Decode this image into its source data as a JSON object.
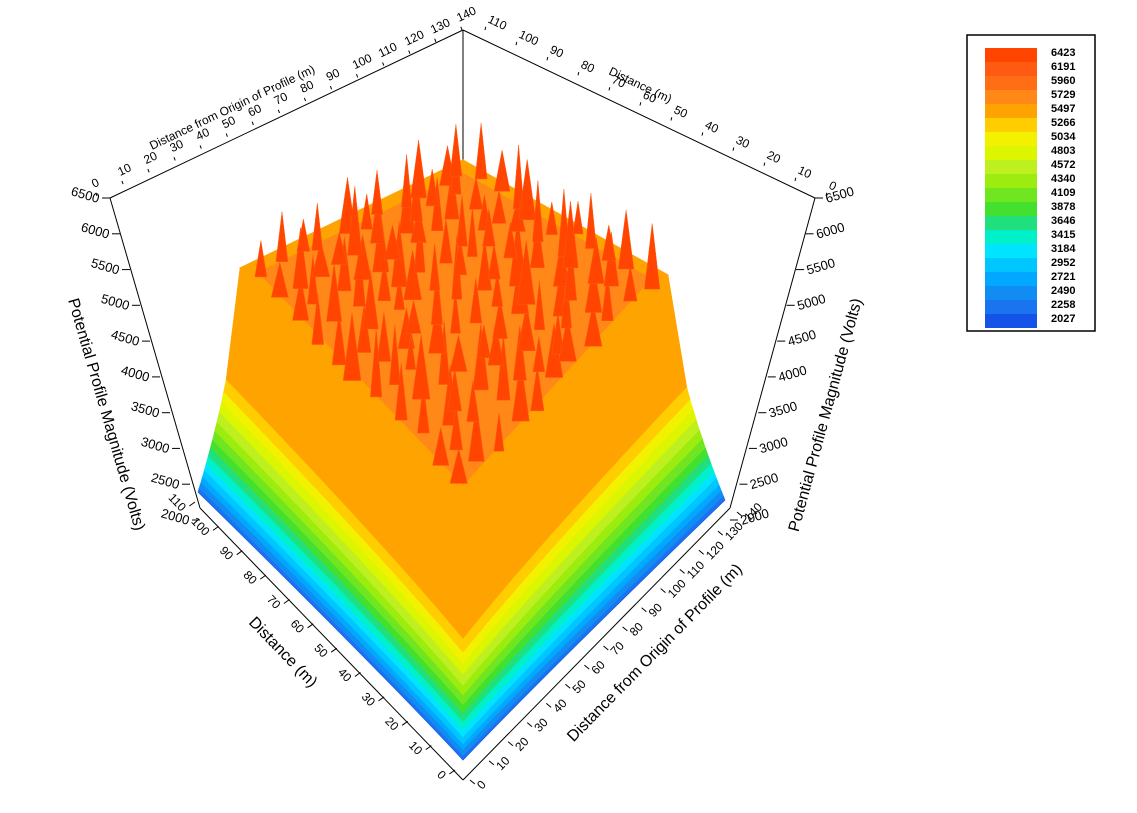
{
  "chart_data": {
    "type": "surface-3d",
    "x_axis": {
      "title": "Distance from Origin of Profile (m)",
      "ticks": [
        0,
        10,
        20,
        30,
        40,
        50,
        60,
        70,
        80,
        90,
        100,
        110,
        120,
        130,
        140
      ],
      "range": [
        0,
        140
      ]
    },
    "y_axis": {
      "title": "Distance (m)",
      "ticks": [
        0,
        10,
        20,
        30,
        40,
        50,
        60,
        70,
        80,
        90,
        100,
        110
      ],
      "range": [
        0,
        110
      ]
    },
    "z_axis": {
      "title": "Potential Profile Magnitude (Volts)",
      "ticks": [
        2000,
        2500,
        3000,
        3500,
        4000,
        4500,
        5000,
        5500,
        6000,
        6500
      ],
      "range": [
        2000,
        6500
      ]
    },
    "legend": {
      "placement": "top-right",
      "levels": [
        6423,
        6191,
        5960,
        5729,
        5497,
        5266,
        5034,
        4803,
        4572,
        4340,
        4109,
        3878,
        3646,
        3415,
        3184,
        2952,
        2721,
        2490,
        2258,
        2027
      ],
      "colors": [
        "#ff4500",
        "#ff5a12",
        "#ff6e14",
        "#ff8818",
        "#ffa300",
        "#ffcd00",
        "#f2f200",
        "#dcf500",
        "#bef020",
        "#9cec10",
        "#70e620",
        "#44e030",
        "#1fe07c",
        "#00f0ca",
        "#00e4ff",
        "#00c6ff",
        "#00a8ff",
        "#108cf2",
        "#1a74f0",
        "#1452e8"
      ]
    },
    "surface": {
      "plateau_value": 6000,
      "edge_value": 2027,
      "peak_value": 6423
    }
  }
}
